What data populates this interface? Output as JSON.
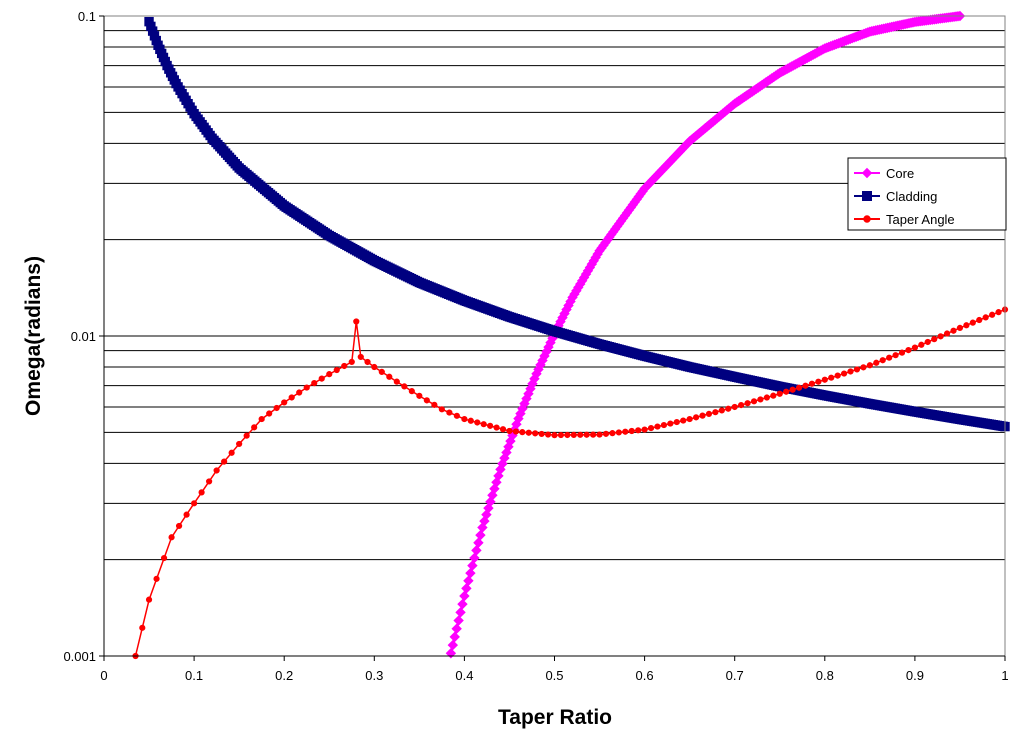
{
  "chart_data": {
    "type": "line",
    "title": "",
    "xlabel": "Taper Ratio",
    "ylabel": "Omega(radians)",
    "xlim": [
      0,
      1
    ],
    "ylim": [
      0.001,
      0.1
    ],
    "y_scale": "log",
    "grid": "horizontal",
    "legend_position": "right",
    "x_ticks": [
      "0",
      "0.1",
      "0.2",
      "0.3",
      "0.4",
      "0.5",
      "0.6",
      "0.7",
      "0.8",
      "0.9",
      "1"
    ],
    "y_ticks": [
      "0.001",
      "0.01",
      "0.1"
    ],
    "series": [
      {
        "name": "Core",
        "color": "#ff00ff",
        "marker": "diamond",
        "x": [
          0.385,
          0.4,
          0.42,
          0.44,
          0.46,
          0.48,
          0.5,
          0.52,
          0.55,
          0.6,
          0.65,
          0.7,
          0.75,
          0.8,
          0.85,
          0.9,
          0.95
        ],
        "y": [
          0.00102,
          0.00154,
          0.00252,
          0.00383,
          0.00552,
          0.00762,
          0.01016,
          0.0132,
          0.01846,
          0.0289,
          0.04062,
          0.05322,
          0.0664,
          0.0792,
          0.08935,
          0.0958,
          0.1
        ]
      },
      {
        "name": "Cladding",
        "color": "#000080",
        "marker": "square",
        "x": [
          0.05,
          0.06,
          0.07,
          0.08,
          0.1,
          0.12,
          0.15,
          0.2,
          0.25,
          0.3,
          0.35,
          0.4,
          0.45,
          0.5,
          0.55,
          0.6,
          0.65,
          0.7,
          0.75,
          0.8,
          0.85,
          0.9,
          0.95,
          1.0
        ],
        "y": [
          0.096,
          0.081,
          0.07,
          0.0615,
          0.0495,
          0.0415,
          0.0335,
          0.0255,
          0.0206,
          0.0172,
          0.0147,
          0.0129,
          0.01148,
          0.01035,
          0.00943,
          0.00866,
          0.008,
          0.00745,
          0.00695,
          0.00652,
          0.00614,
          0.0058,
          0.00549,
          0.00521
        ]
      },
      {
        "name": "Taper Angle",
        "color": "#ff0000",
        "marker": "circle",
        "x": [
          0.035,
          0.05,
          0.075,
          0.1,
          0.125,
          0.15,
          0.175,
          0.2,
          0.225,
          0.25,
          0.275,
          0.28,
          0.285,
          0.3,
          0.325,
          0.35,
          0.375,
          0.4,
          0.45,
          0.5,
          0.55,
          0.6,
          0.65,
          0.7,
          0.75,
          0.8,
          0.85,
          0.9,
          0.95,
          1.0
        ],
        "y": [
          0.001,
          0.0015,
          0.00235,
          0.003,
          0.0038,
          0.0046,
          0.0055,
          0.0062,
          0.0069,
          0.0076,
          0.0083,
          0.0111,
          0.0086,
          0.008,
          0.0072,
          0.0065,
          0.0059,
          0.0055,
          0.00505,
          0.0049,
          0.00492,
          0.0051,
          0.0055,
          0.006,
          0.0066,
          0.0073,
          0.0081,
          0.0092,
          0.0106,
          0.0121
        ]
      }
    ]
  }
}
